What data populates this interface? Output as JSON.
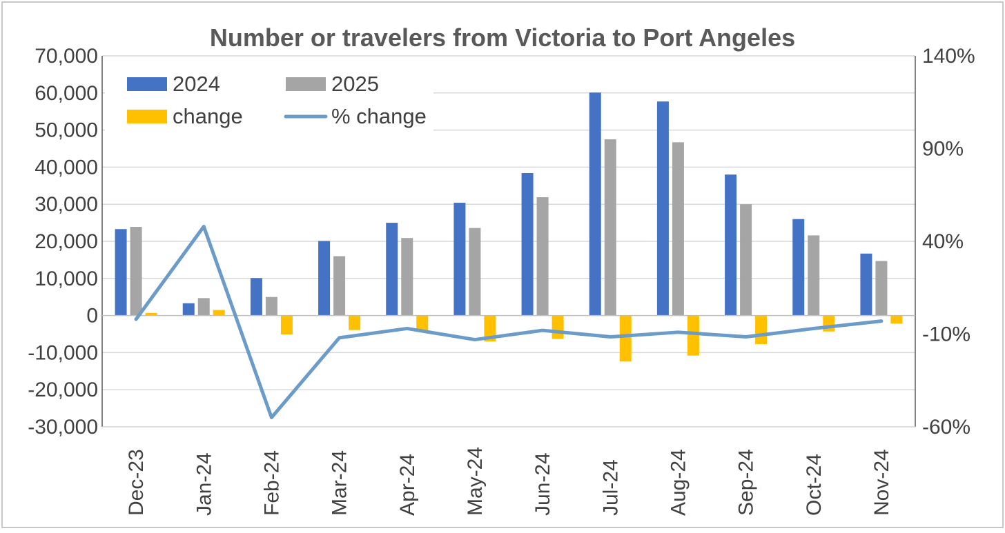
{
  "chart_data": {
    "type": "bar",
    "title": "Number or travelers from Victoria to Port Angeles",
    "categories": [
      "Dec-23",
      "Jan-24",
      "Feb-24",
      "Mar-24",
      "Apr-24",
      "May-24",
      "Jun-24",
      "Jul-24",
      "Aug-24",
      "Sep-24",
      "Oct-24",
      "Nov-24"
    ],
    "series": [
      {
        "name": "2024",
        "kind": "bar",
        "axis": "left",
        "color": "#4472c4",
        "values": [
          23300,
          3300,
          10100,
          20100,
          25000,
          30400,
          38400,
          60100,
          57700,
          38000,
          26000,
          16700
        ]
      },
      {
        "name": "2025",
        "kind": "bar",
        "axis": "left",
        "color": "#a5a5a5",
        "values": [
          23900,
          4700,
          5000,
          16000,
          20900,
          23600,
          31900,
          47500,
          46700,
          30000,
          21600,
          14700
        ]
      },
      {
        "name": "change",
        "kind": "bar",
        "axis": "left",
        "color": "#ffc000",
        "values": [
          700,
          1500,
          -5100,
          -3900,
          -4000,
          -7000,
          -6300,
          -12400,
          -10800,
          -7700,
          -4300,
          -2200
        ]
      },
      {
        "name": "% change",
        "kind": "line",
        "axis": "right",
        "color": "#6b9bc8",
        "values": [
          -2,
          48,
          -55,
          -12,
          -7,
          -13,
          -8,
          -11.5,
          -9,
          -11.5,
          -7,
          -3
        ]
      }
    ],
    "left_axis": {
      "ylim": [
        -30000,
        70000
      ],
      "ticks": [
        70000,
        60000,
        50000,
        40000,
        30000,
        20000,
        10000,
        0,
        -10000,
        -20000,
        -30000
      ],
      "tick_labels": [
        "70,000",
        "60,000",
        "50,000",
        "40,000",
        "30,000",
        "20,000",
        "10,000",
        "0",
        "-10,000",
        "-20,000",
        "-30,000"
      ]
    },
    "right_axis": {
      "ylim": [
        -60,
        140
      ],
      "ticks": [
        140,
        90,
        40,
        -10,
        -60
      ],
      "tick_labels": [
        "140%",
        "90%",
        "40%",
        "-10%",
        "-60%"
      ]
    },
    "grid": true,
    "legend": {
      "position": "top-left",
      "items": [
        "2024",
        "2025",
        "change",
        "% change"
      ]
    }
  }
}
